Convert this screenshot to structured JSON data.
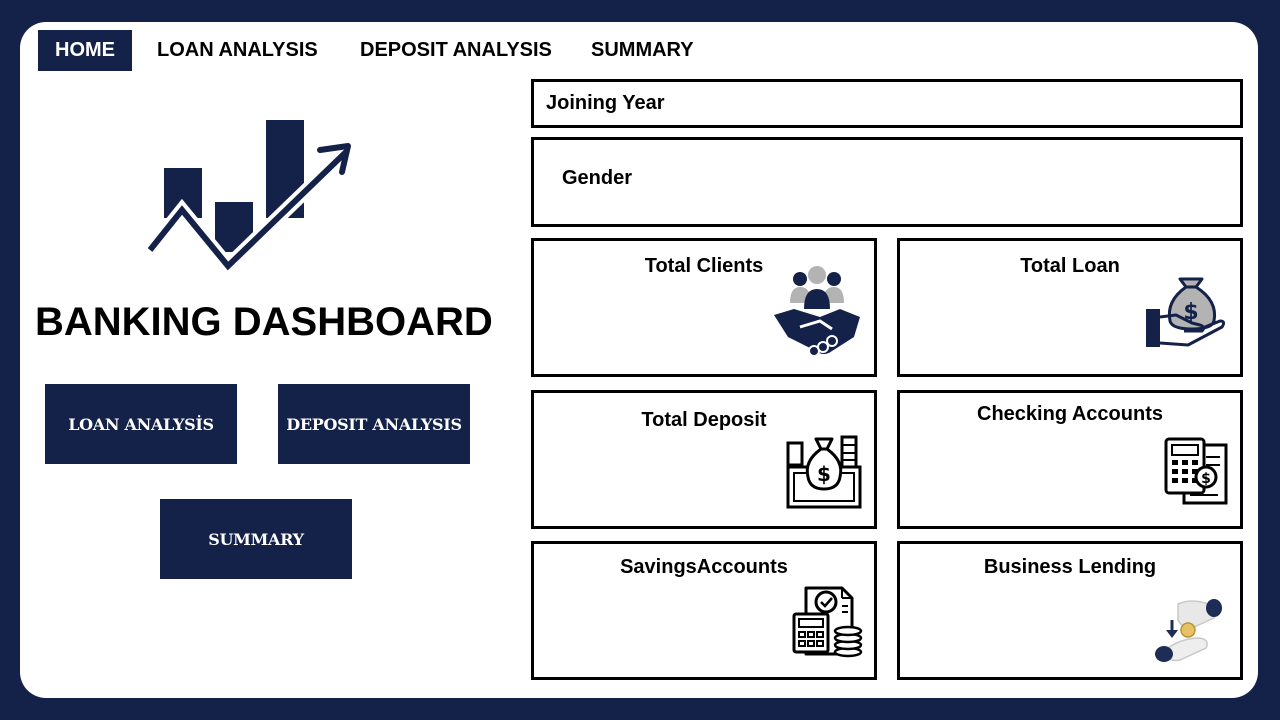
{
  "nav": {
    "tabs": [
      {
        "label": "HOME",
        "active": true
      },
      {
        "label": "LOAN ANALYSIS",
        "active": false
      },
      {
        "label": "DEPOSIT ANALYSIS",
        "active": false
      },
      {
        "label": "SUMMARY",
        "active": false
      }
    ]
  },
  "home": {
    "title": "BANKING DASHBOARD",
    "buttons": {
      "loan": "LOAN ANALYSİS",
      "deposit": "DEPOSIT ANALYSIS",
      "summary": "SUMMARY"
    }
  },
  "filters": {
    "joining_year": "Joining Year",
    "gender": "Gender"
  },
  "cards": [
    {
      "title": "Total Clients",
      "icon": "clients-handshake-icon"
    },
    {
      "title": "Total Loan",
      "icon": "money-bag-hand-icon"
    },
    {
      "title": "Total Deposit",
      "icon": "cash-deposit-icon"
    },
    {
      "title": "Checking Accounts",
      "icon": "calculator-document-icon"
    },
    {
      "title": "SavingsAccounts",
      "icon": "savings-document-coins-icon"
    },
    {
      "title": "Business Lending",
      "icon": "hand-coin-icon"
    }
  ],
  "colors": {
    "brand": "#14224a",
    "background": "#ffffff",
    "border": "#000000",
    "icon_gray": "#b3b3b3"
  }
}
